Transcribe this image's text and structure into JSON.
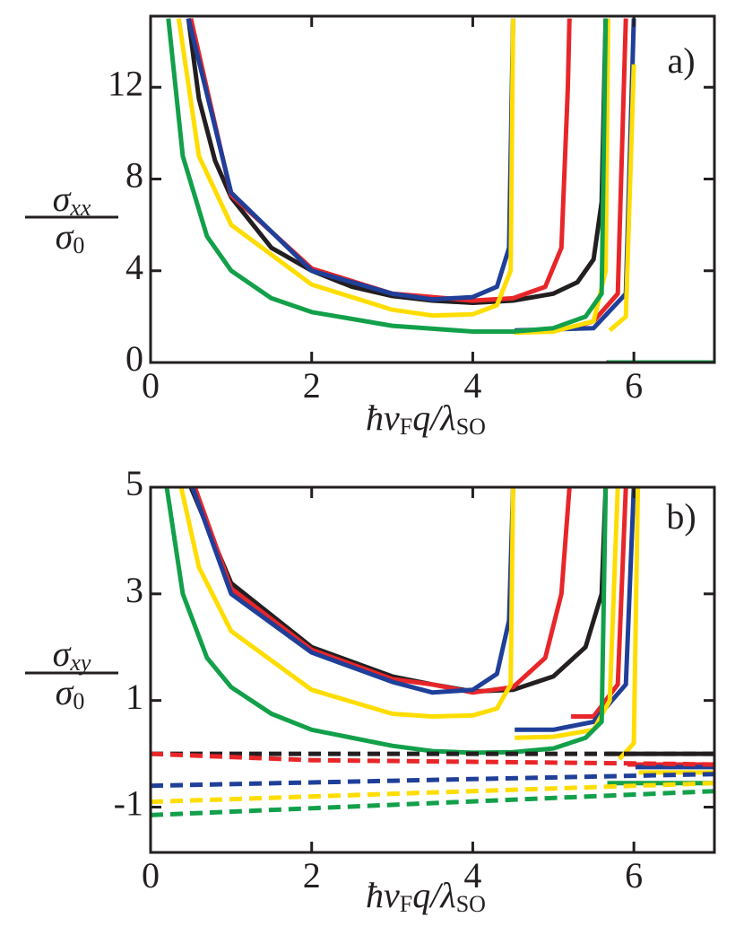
{
  "chart_data": [
    {
      "type": "line",
      "panel_label": "a)",
      "ylabel": {
        "numerator": [
          "σ",
          "xx"
        ],
        "denominator": [
          "σ",
          "0"
        ]
      },
      "xlabel": [
        "ħv",
        "F",
        "q/λ",
        "SO"
      ],
      "xlim": [
        0,
        7
      ],
      "ylim": [
        0,
        15.1
      ],
      "xticks": [
        0,
        2,
        4,
        6
      ],
      "yticks": [
        0,
        4,
        8,
        12
      ],
      "series": [
        {
          "color": "#231f20",
          "dashed": false,
          "x": [
            0.47,
            0.6,
            0.8,
            1,
            1.5,
            2,
            2.5,
            3,
            3.5,
            4,
            4.5,
            5,
            5.3,
            5.5,
            5.6,
            5.65,
            null,
            5.66,
            7
          ],
          "values": [
            15,
            11.5,
            8.8,
            7.2,
            5.0,
            4.0,
            3.3,
            2.9,
            2.7,
            2.6,
            2.7,
            3.0,
            3.5,
            4.5,
            7,
            15,
            null,
            0,
            0
          ]
        },
        {
          "color": "#e8262a",
          "dashed": false,
          "x": [
            0.5,
            1,
            2,
            3,
            4,
            4.5,
            4.9,
            5.1,
            5.18,
            5.2,
            null,
            5.22,
            5.5,
            5.8,
            5.9,
            null,
            5.92,
            7
          ],
          "values": [
            15,
            7.3,
            4.1,
            3.0,
            2.7,
            2.8,
            3.3,
            5,
            12,
            15,
            null,
            1.5,
            1.8,
            3,
            15,
            null,
            0,
            0
          ]
        },
        {
          "color": "#1f3f99",
          "dashed": false,
          "x": [
            0.47,
            1,
            2,
            3,
            3.5,
            4,
            4.3,
            4.45,
            4.5,
            null,
            4.52,
            5.5,
            5.9,
            6.0,
            null,
            6.02,
            7
          ],
          "values": [
            15,
            7.4,
            4.0,
            3.0,
            2.75,
            2.85,
            3.3,
            5,
            15,
            null,
            1.4,
            1.5,
            3,
            15,
            null,
            0,
            0
          ]
        },
        {
          "color": "#ffdd00",
          "dashed": false,
          "x": [
            0.35,
            0.6,
            1,
            2,
            3,
            3.5,
            4,
            4.3,
            4.47,
            4.5,
            null,
            4.51,
            5,
            5.5,
            5.65,
            5.68,
            null,
            5.7,
            5.9,
            6.0,
            null,
            6.02,
            7
          ],
          "values": [
            15,
            9,
            6,
            3.4,
            2.3,
            2.05,
            2.1,
            2.5,
            4,
            15,
            null,
            1.3,
            1.35,
            1.8,
            4,
            15,
            null,
            1.4,
            2.0,
            13,
            null,
            0,
            0
          ]
        },
        {
          "color": "#12a04a",
          "dashed": false,
          "x": [
            0.22,
            0.4,
            0.7,
            1,
            1.5,
            2,
            3,
            4,
            4.5,
            5,
            5.4,
            5.6,
            5.65,
            null,
            5.67,
            7
          ],
          "values": [
            15,
            9,
            5.5,
            4,
            2.8,
            2.2,
            1.6,
            1.35,
            1.35,
            1.5,
            2.0,
            3.0,
            15,
            null,
            0,
            0
          ]
        }
      ]
    },
    {
      "type": "line",
      "panel_label": "b)",
      "ylabel": {
        "numerator": [
          "σ",
          "xy"
        ],
        "denominator": [
          "σ",
          "0"
        ]
      },
      "xlabel": [
        "ħv",
        "F",
        "q/λ",
        "SO"
      ],
      "xlim": [
        0,
        7
      ],
      "ylim": [
        -1.85,
        5
      ],
      "xticks": [
        0,
        2,
        4,
        6
      ],
      "yticks": [
        -1,
        1,
        3,
        5
      ],
      "series": [
        {
          "color": "#231f20",
          "dashed": false,
          "x": [
            0.5,
            1,
            2,
            3,
            3.5,
            4,
            4.5,
            5,
            5.4,
            5.6,
            5.65,
            null,
            5.66,
            7
          ],
          "values": [
            5,
            3.2,
            2.0,
            1.45,
            1.3,
            1.17,
            1.2,
            1.45,
            2.0,
            3.0,
            5,
            null,
            0,
            0
          ]
        },
        {
          "color": "#e8262a",
          "dashed": false,
          "x": [
            0.55,
            1,
            2,
            3,
            3.5,
            4,
            4.5,
            4.9,
            5.1,
            5.2,
            null,
            5.22,
            5.5,
            5.8,
            5.9,
            null,
            5.92,
            7
          ],
          "values": [
            5,
            3.1,
            1.95,
            1.4,
            1.3,
            1.15,
            1.25,
            1.8,
            3,
            5,
            null,
            0.7,
            0.7,
            1.3,
            5,
            null,
            -0.2,
            -0.2
          ]
        },
        {
          "color": "#1f3f99",
          "dashed": false,
          "x": [
            0.52,
            1,
            2,
            3,
            3.5,
            4,
            4.3,
            4.45,
            4.5,
            null,
            4.52,
            5,
            5.5,
            5.9,
            6.0,
            null,
            6.02,
            7
          ],
          "values": [
            5,
            3.0,
            1.9,
            1.35,
            1.15,
            1.2,
            1.5,
            2.5,
            5,
            null,
            0.45,
            0.45,
            0.6,
            1.3,
            5,
            null,
            -0.25,
            -0.25
          ]
        },
        {
          "color": "#ffdd00",
          "dashed": false,
          "x": [
            0.38,
            0.6,
            1,
            2,
            3,
            3.5,
            4,
            4.3,
            4.47,
            4.5,
            null,
            4.52,
            5,
            5.5,
            5.7,
            5.8,
            null,
            5.82,
            6.0,
            6.05,
            null,
            6.06,
            7
          ],
          "values": [
            5,
            3.5,
            2.3,
            1.2,
            0.75,
            0.7,
            0.72,
            0.85,
            1.3,
            5,
            null,
            0.3,
            0.32,
            0.45,
            1.0,
            5,
            null,
            -0.1,
            0.2,
            5,
            null,
            -0.35,
            -0.35
          ]
        },
        {
          "color": "#12a04a",
          "dashed": false,
          "x": [
            0.2,
            0.4,
            0.7,
            1,
            1.5,
            2,
            3,
            3.5,
            4,
            4.5,
            5,
            5.4,
            5.6,
            5.65,
            null,
            5.67,
            7
          ],
          "values": [
            5,
            3,
            1.8,
            1.25,
            0.75,
            0.45,
            0.15,
            0.05,
            0.02,
            0.03,
            0.1,
            0.3,
            0.6,
            5,
            null,
            -0.55,
            -0.55
          ]
        },
        {
          "color": "#231f20",
          "dashed": true,
          "x": [
            0,
            7
          ],
          "values": [
            0,
            0
          ]
        },
        {
          "color": "#e8262a",
          "dashed": true,
          "x": [
            0,
            2,
            4,
            6,
            7
          ],
          "values": [
            0,
            -0.12,
            -0.15,
            -0.18,
            -0.2
          ]
        },
        {
          "color": "#1f3f99",
          "dashed": true,
          "x": [
            0,
            7
          ],
          "values": [
            -0.6,
            -0.38
          ]
        },
        {
          "color": "#ffdd00",
          "dashed": true,
          "x": [
            0,
            7
          ],
          "values": [
            -0.9,
            -0.55
          ]
        },
        {
          "color": "#12a04a",
          "dashed": true,
          "x": [
            0,
            7
          ],
          "values": [
            -1.15,
            -0.7
          ]
        }
      ]
    }
  ]
}
